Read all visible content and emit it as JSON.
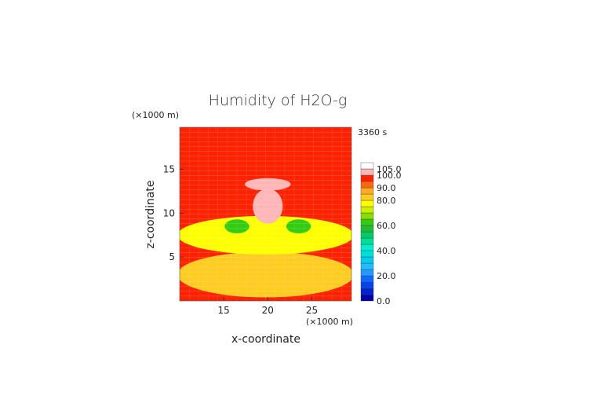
{
  "chart_data": {
    "type": "heatmap",
    "title": "Humidity of H2O-g",
    "time_label": "3360 s",
    "xlabel": "x-coordinate",
    "ylabel": "z-coordinate",
    "x_unit": "(×1000 m)",
    "y_unit": "(×1000 m)",
    "xlim": [
      10,
      29.5
    ],
    "ylim": [
      0,
      19.8
    ],
    "x_ticks": [
      15,
      20,
      25
    ],
    "y_ticks": [
      5,
      10,
      15
    ],
    "grid": true,
    "colorbar": {
      "tick_labels": [
        "0.0",
        "20.0",
        "40.0",
        "60.0",
        "80.0",
        "90.0",
        "100.0",
        "105.0"
      ],
      "tick_values": [
        0,
        20,
        40,
        60,
        80,
        90,
        100,
        105
      ],
      "levels": [
        {
          "from": 0,
          "to": 5,
          "color": "#0000aa"
        },
        {
          "from": 5,
          "to": 10,
          "color": "#0022cc"
        },
        {
          "from": 10,
          "to": 15,
          "color": "#0044ee"
        },
        {
          "from": 15,
          "to": 20,
          "color": "#1166ff"
        },
        {
          "from": 20,
          "to": 25,
          "color": "#2299ff"
        },
        {
          "from": 25,
          "to": 30,
          "color": "#22bbff"
        },
        {
          "from": 30,
          "to": 35,
          "color": "#00ccee"
        },
        {
          "from": 35,
          "to": 40,
          "color": "#00dddd"
        },
        {
          "from": 40,
          "to": 45,
          "color": "#00eecc"
        },
        {
          "from": 45,
          "to": 50,
          "color": "#00dd99"
        },
        {
          "from": 50,
          "to": 55,
          "color": "#00cc66"
        },
        {
          "from": 55,
          "to": 60,
          "color": "#22bb33"
        },
        {
          "from": 60,
          "to": 65,
          "color": "#33cc11"
        },
        {
          "from": 65,
          "to": 70,
          "color": "#88dd00"
        },
        {
          "from": 70,
          "to": 75,
          "color": "#ccee00"
        },
        {
          "from": 75,
          "to": 80,
          "color": "#ffff00"
        },
        {
          "from": 80,
          "to": 85,
          "color": "#ffcc22"
        },
        {
          "from": 85,
          "to": 90,
          "color": "#ffaa22"
        },
        {
          "from": 90,
          "to": 95,
          "color": "#ff6611"
        },
        {
          "from": 95,
          "to": 100,
          "color": "#ff2200"
        },
        {
          "from": 100,
          "to": 105,
          "color": "#ffb6b6"
        },
        {
          "from": 105,
          "to": 110,
          "color": "#ffffff"
        }
      ]
    },
    "regions": [
      {
        "label": "saturated plume top",
        "value": 102,
        "cx": 20,
        "cy": 13.3,
        "rx": 2.6,
        "ry": 0.7
      },
      {
        "label": "saturated plume core",
        "value": 102,
        "cx": 20,
        "cy": 10.8,
        "rx": 1.7,
        "ry": 2.0
      },
      {
        "label": "dry pocket left",
        "value": 62,
        "cx": 16.5,
        "cy": 8.5,
        "rx": 1.4,
        "ry": 0.8
      },
      {
        "label": "dry pocket right",
        "value": 62,
        "cx": 23.5,
        "cy": 8.5,
        "rx": 1.4,
        "ry": 0.8
      },
      {
        "label": "mid-level band",
        "value": 77,
        "cx": 19.75,
        "cy": 7.5,
        "rx": 10,
        "ry": 2.2
      },
      {
        "label": "lower layer",
        "value": 84,
        "cx": 19.75,
        "cy": 3,
        "rx": 10,
        "ry": 2.6
      }
    ]
  }
}
